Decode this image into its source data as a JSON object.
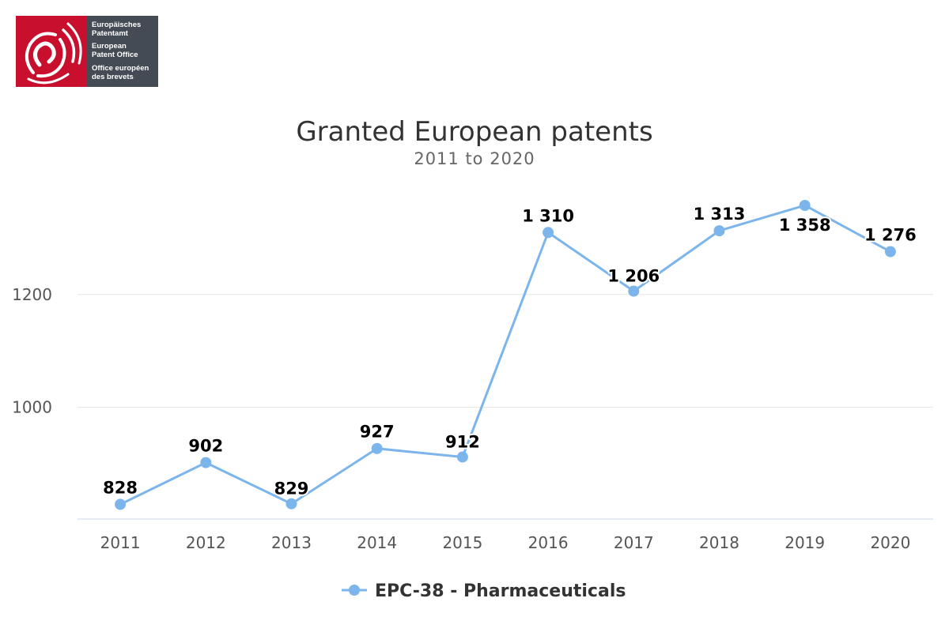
{
  "logo": {
    "name": "epo-logo-icon",
    "lines": [
      "Europäisches",
      "Patentamt",
      "European",
      "Patent Office",
      "Office européen",
      "des brevets"
    ]
  },
  "colors": {
    "series": "#7cb5ec",
    "grid": "#e6e6e6",
    "axis": "#ccd6eb",
    "logo_red": "#c8102e",
    "logo_gray": "#444b54"
  },
  "chart_data": {
    "type": "line",
    "title": "Granted European patents",
    "subtitle": "2011 to 2020",
    "xlabel": "",
    "ylabel": "",
    "categories": [
      "2011",
      "2012",
      "2013",
      "2014",
      "2015",
      "2016",
      "2017",
      "2018",
      "2019",
      "2020"
    ],
    "series": [
      {
        "name": "EPC-38 - Pharmaceuticals",
        "values": [
          828,
          902,
          829,
          927,
          912,
          1310,
          1206,
          1313,
          1358,
          1276
        ],
        "labels": [
          "828",
          "902",
          "829",
          "927",
          "912",
          "1 310",
          "1 206",
          "1 313",
          "1 358",
          "1 276"
        ]
      }
    ],
    "y_ticks": [
      1000,
      1200
    ],
    "ylim": [
      802,
      1400
    ],
    "grid": true,
    "legend_position": "bottom-center"
  }
}
